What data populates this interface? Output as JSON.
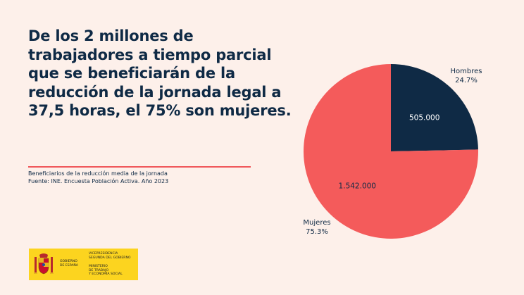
{
  "headline": [
    "De los 2 millones de",
    "trabajadores a tiempo parcial",
    "que se beneficiarán de la",
    "reducción de la jornada legal a",
    "37,5 horas, el 75% son mujeres."
  ],
  "notes": {
    "caption": "Beneficiarios de la reducción media de la jornada",
    "source": "Fuente: INE. Encuesta Población Activa. Año 2023"
  },
  "chart_data": {
    "type": "pie",
    "slices": [
      {
        "name": "Hombres",
        "percent_label": "24.7%",
        "value": 505000,
        "value_label": "505.000",
        "color": "#0f2a45"
      },
      {
        "name": "Mujeres",
        "percent_label": "75.3%",
        "value": 1542000,
        "value_label": "1.542.000",
        "color": "#f45b5b"
      }
    ],
    "start_angle": "12 o'clock",
    "direction": "clockwise"
  },
  "footer": {
    "gov_line1": "Gobierno",
    "gov_line2": "de España",
    "org_line1": "Vicepresidencia",
    "org_line2": "Segunda del Gobierno",
    "ministry_line1": "Ministerio",
    "ministry_line2": "de Trabajo",
    "ministry_line3": "y Economía Social"
  },
  "colors": {
    "background": "#fdf0ea",
    "navy": "#0f2a45",
    "coral": "#f45b5b",
    "logo_yellow": "#fcd41f"
  }
}
